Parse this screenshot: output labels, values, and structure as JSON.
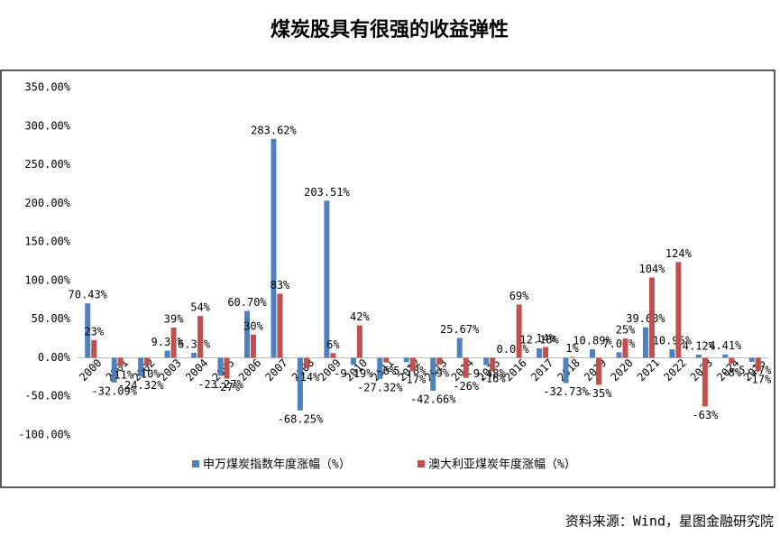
{
  "chart_data": {
    "type": "bar",
    "title": "煤炭股具有很强的收益弹性",
    "source": "资料来源：Wind，星图金融研究院",
    "categories": [
      "2000",
      "2001",
      "2002",
      "2003",
      "2004",
      "2005",
      "2006",
      "2007",
      "2008",
      "2009",
      "2010",
      "2011",
      "2012",
      "2013",
      "2014",
      "2015",
      "2016",
      "2017",
      "2018",
      "2019",
      "2020",
      "2021",
      "2022",
      "2023",
      "2024",
      "2025"
    ],
    "series": [
      {
        "name": "申万煤炭指数年度涨幅（%）",
        "color": "#4f81bd",
        "values": [
          70.43,
          -32.09,
          -24.32,
          9.32,
          6.35,
          -23.27,
          60.7,
          283.62,
          -68.25,
          203.51,
          -9.19,
          -27.32,
          -5.78,
          -42.66,
          25.67,
          -9.48,
          0.08,
          12.18,
          -32.73,
          10.89,
          7.05,
          39.6,
          10.95,
          4.12,
          4.41,
          -5.27
        ],
        "value_labels": [
          "70.43%",
          "-32.09%",
          "-24.32%",
          "9.32%",
          "6.35%",
          "-23.27%",
          "60.70%",
          "283.62%",
          "-68.25%",
          "203.51%",
          "-9.19%",
          "-27.32%",
          "-5.78%",
          "-42.66%",
          "25.67%",
          "-9.48%",
          "0.08%",
          "12.18%",
          "-32.73%",
          "10.89%",
          "7.05%",
          "39.60%",
          "10.95%",
          "4.12%",
          "4.41%",
          "-5.27%"
        ]
      },
      {
        "name": "澳大利亚煤炭年度涨幅（%）",
        "color": "#c0504d",
        "values": [
          23,
          -11,
          -10,
          39,
          54,
          -27,
          30,
          83,
          -14,
          6,
          42,
          -6,
          -17,
          -9,
          -26,
          -16,
          69,
          14,
          1,
          -35,
          25,
          104,
          124,
          -63,
          -8,
          -17
        ],
        "value_labels": [
          "23%",
          "-11%",
          "-10%",
          "39%",
          "54%",
          "-27%",
          "30%",
          "83%",
          "-14%",
          "6%",
          "42%",
          "-6%",
          "-17%",
          "-9%",
          "-26%",
          "-16%",
          "69%",
          "14%",
          "1%",
          "-35%",
          "25%",
          "104%",
          "124%",
          "-63%",
          "-8%",
          "-17%"
        ]
      }
    ],
    "ylim": [
      -100,
      350
    ],
    "yticks": [
      {
        "value": -100,
        "label": "-100.00%"
      },
      {
        "value": -50,
        "label": "-50.00%"
      },
      {
        "value": 0,
        "label": "0.00%"
      },
      {
        "value": 50,
        "label": "50.00%"
      },
      {
        "value": 100,
        "label": "100.00%"
      },
      {
        "value": 150,
        "label": "150.00%"
      },
      {
        "value": 200,
        "label": "200.00%"
      },
      {
        "value": 250,
        "label": "250.00%"
      },
      {
        "value": 300,
        "label": "300.00%"
      },
      {
        "value": 350,
        "label": "350.00%"
      }
    ],
    "grid": false,
    "legend": "bottom"
  }
}
